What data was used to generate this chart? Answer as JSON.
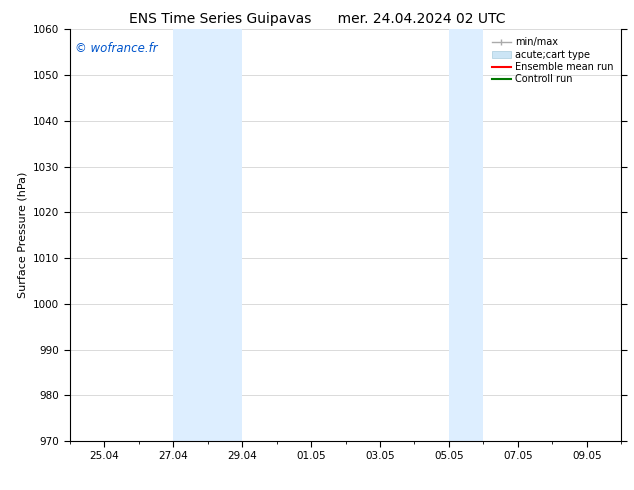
{
  "title_left": "ENS Time Series Guipavas",
  "title_right": "mer. 24.04.2024 02 UTC",
  "ylabel": "Surface Pressure (hPa)",
  "ylim": [
    970,
    1060
  ],
  "yticks": [
    970,
    980,
    990,
    1000,
    1010,
    1020,
    1030,
    1040,
    1050,
    1060
  ],
  "background_color": "#ffffff",
  "plot_bg_color": "#ffffff",
  "shaded_bands": [
    {
      "x_start": 3,
      "x_end": 5,
      "color": "#ddeeff"
    },
    {
      "x_start": 11,
      "x_end": 12,
      "color": "#ddeeff"
    }
  ],
  "watermark": "© wofrance.fr",
  "watermark_color": "#0055cc",
  "legend_entries": [
    {
      "label": "min/max",
      "color": "#aaaaaa"
    },
    {
      "label": "acute;cart type",
      "color": "#cce5f5"
    },
    {
      "label": "Ensemble mean run",
      "color": "#ff0000"
    },
    {
      "label": "Controll run",
      "color": "#007700"
    }
  ],
  "xtick_positions": [
    1,
    3,
    5,
    7,
    9,
    11,
    13,
    15
  ],
  "xtick_labels": [
    "25.04",
    "27.04",
    "29.04",
    "01.05",
    "03.05",
    "05.05",
    "07.05",
    "09.05"
  ],
  "xlim": [
    0,
    16
  ],
  "grid_color": "#cccccc",
  "title_fontsize": 10,
  "axis_fontsize": 8,
  "tick_fontsize": 7.5
}
